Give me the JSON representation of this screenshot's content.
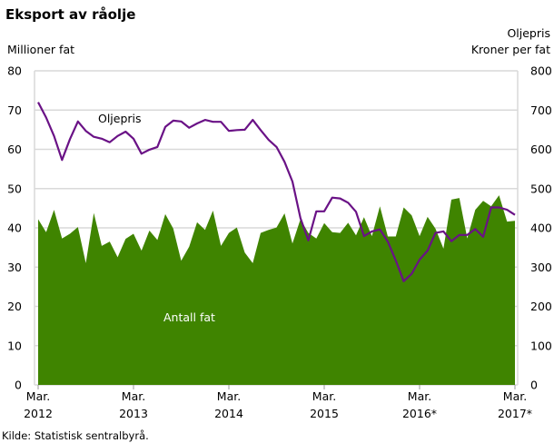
{
  "chart_data": {
    "type": "area+line",
    "title": "Eksport av råolje",
    "ylabel_left": "Millioner fat",
    "ylabel_right": [
      "Oljepris",
      "Kroner per fat"
    ],
    "source": "Kilde: Statistisk sentralbyrå.",
    "ylim_left": [
      0,
      80
    ],
    "ylim_right": [
      0,
      800
    ],
    "yticks_left": [
      "0",
      "10",
      "20",
      "30",
      "40",
      "50",
      "60",
      "70",
      "80"
    ],
    "yticks_right": [
      "0",
      "100",
      "200",
      "300",
      "400",
      "500",
      "600",
      "700",
      "800"
    ],
    "xticks": [
      {
        "line1": "Mar.",
        "line2": "2012"
      },
      {
        "line1": "Mar.",
        "line2": "2013"
      },
      {
        "line1": "Mar.",
        "line2": "2014"
      },
      {
        "line1": "Mar.",
        "line2": "2015"
      },
      {
        "line1": "Mar.",
        "line2": "2016*"
      },
      {
        "line1": "Mar.",
        "line2": "2017*"
      }
    ],
    "x_range": "Mar. 2012 – Mar. 2017 (monthly)",
    "grid": true,
    "colors": {
      "area": "#3f8400",
      "line": "#6a1286",
      "grid": "#d9d9d9"
    },
    "series": [
      {
        "name": "Antall fat",
        "axis": "left",
        "kind": "area",
        "values": [
          42.2,
          38.9,
          44.6,
          37.3,
          38.5,
          40.2,
          31,
          43.8,
          35.4,
          36.5,
          32.5,
          37.2,
          38.5,
          34.2,
          39.3,
          36.9,
          43.5,
          39.8,
          31.6,
          35.2,
          41.4,
          39.5,
          44.4,
          35.4,
          38.7,
          40.1,
          33.7,
          31,
          38.7,
          39.5,
          40.1,
          43.7,
          36,
          42.2,
          38.7,
          37.3,
          41.2,
          38.9,
          38.7,
          41.3,
          38.1,
          42.7,
          37.9,
          45.5,
          37.8,
          37.8,
          45.2,
          43.2,
          37.9,
          42.8,
          39.8,
          34.7,
          47.2,
          47.6,
          37.3,
          44.6,
          46.9,
          45.5,
          48.3,
          41.6,
          41.8
        ]
      },
      {
        "name": "Oljepris",
        "axis": "right",
        "kind": "line",
        "values": [
          720,
          681,
          634,
          573,
          626,
          671,
          647,
          632,
          627,
          618,
          634,
          645,
          627,
          589,
          599,
          606,
          657,
          673,
          671,
          655,
          666,
          675,
          670,
          670,
          647,
          649,
          650,
          675,
          649,
          624,
          606,
          568,
          518,
          425,
          368,
          442,
          442,
          477,
          475,
          464,
          441,
          379,
          391,
          396,
          365,
          317,
          264,
          283,
          319,
          342,
          387,
          391,
          366,
          382,
          382,
          397,
          377,
          452,
          452,
          446,
          433
        ]
      }
    ]
  }
}
